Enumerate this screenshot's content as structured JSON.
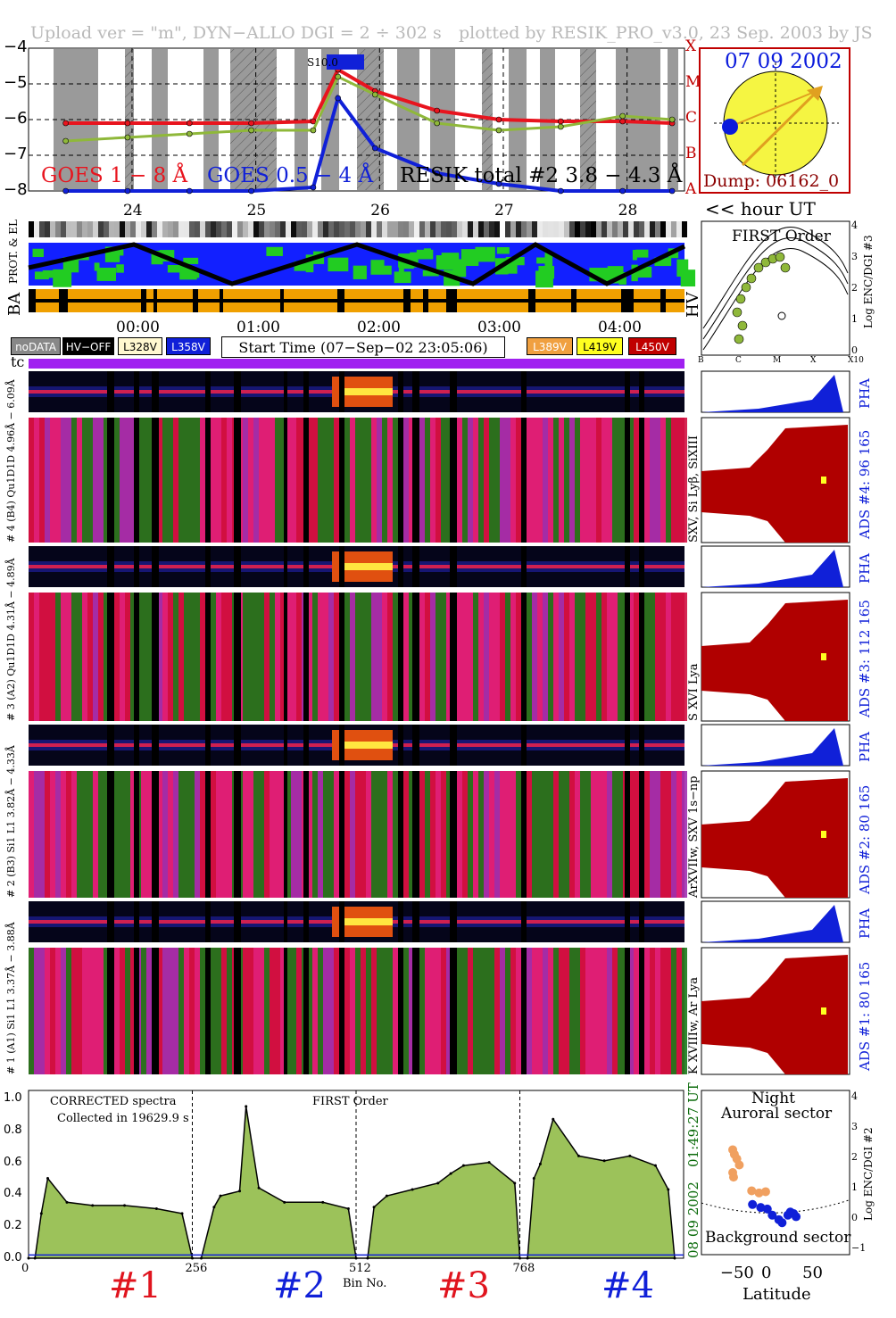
{
  "header": {
    "upload": "Upload ver = \"m\", DYN−ALLO DGI =   2 ÷ 302 s",
    "plotted": "plotted by RESIK_PRO_v3.0, 23 Sep. 2003 by JS"
  },
  "goes_panel": {
    "y_ticks": [
      "−4",
      "−5",
      "−6",
      "−7",
      "−8"
    ],
    "class_letters": [
      "X",
      "M",
      "C",
      "B",
      "A"
    ],
    "x_ticks": [
      "24",
      "25",
      "26",
      "27",
      "28"
    ],
    "flare_tag": "S10.0",
    "label_goes18": "GOES 1 − 8 Å",
    "label_goes054": "GOES 0.5 − 4 Å",
    "label_resik": "RESIK total #2  3.8 − 4.3 Å",
    "hour_label": "<< hour UT",
    "colors": {
      "goes18": "#e8141e",
      "goes054": "#1020d8",
      "resik": "#8fb83a"
    }
  },
  "sun_panel": {
    "date": "07 09 2002",
    "dump": "Dump: 06162_0",
    "colors": {
      "disk": "#f5f542",
      "track": "#e0a020",
      "point": "#0a1adc"
    }
  },
  "env_panel": {
    "label_prot": "PROT. & EL",
    "label_ba": "BA",
    "label_hv": "HV",
    "time_ticks": [
      "00:00",
      "01:00",
      "02:00",
      "03:00",
      "04:00"
    ]
  },
  "legend": {
    "nodata": "noDATA",
    "hvoff": "HV−OFF",
    "l328": "L328V",
    "l358": "L358V",
    "start_time": "Start Time (07−Sep−02 23:05:06)",
    "l389": "L389V",
    "l419": "L419V",
    "l450": "L450V",
    "tc": "tc"
  },
  "first_order_panel": {
    "title": "FIRST Order",
    "y_label": "Log ENC/DGI #3",
    "y_ticks": [
      "4",
      "3",
      "2",
      "1",
      "0"
    ],
    "x_ticks": [
      "B",
      "C",
      "M",
      "X",
      "X10"
    ]
  },
  "channels": [
    {
      "left_label": "# 4 (B4) Qu1D1D 4.96Å − 6.09Å",
      "line_label": "SXV, Si Lyβ, SiXIII",
      "ads": "ADS #4:",
      "ads_nums": "96 165",
      "pha": "PHA"
    },
    {
      "left_label": "# 3 (A2) Qu1D1D 4.31Å − 4.89Å",
      "line_label": "S XVI Lya",
      "ads": "ADS #3:",
      "ads_nums": "112 165",
      "pha": "PHA"
    },
    {
      "left_label": "# 2 (B3) Si1 L1 3.82Å − 4.33Å",
      "line_label": "ArXVIIw, SXV 1s−np",
      "ads": "ADS #2:",
      "ads_nums": "80 165",
      "pha": "PHA"
    },
    {
      "left_label": "# 1 (A1) Si1 L1 3.37Å − 3.88Å",
      "line_label": "K XVIIIw, Ar Lya",
      "ads": "ADS #1:",
      "ads_nums": "80 165",
      "pha": "PHA"
    }
  ],
  "spectrum_panel": {
    "corrected": "CORRECTED spectra",
    "collected": "Collected in 19629.9 s",
    "first_order": "FIRST Order",
    "y_ticks": [
      "1.0",
      "0.8",
      "0.6",
      "0.4",
      "0.2",
      "0.0"
    ],
    "x_ticks": [
      "0",
      "256",
      "512",
      "768"
    ],
    "x_label": "Bin No.",
    "date": "08 09 2002",
    "time": "01:49:27 UT",
    "groups": [
      "#1",
      "#2",
      "#3",
      "#4"
    ],
    "group_colors": [
      "#e0141e",
      "#1020d8",
      "#e0141e",
      "#1020d8"
    ]
  },
  "latitude_panel": {
    "night": "Night",
    "auroral": "Auroral sector",
    "background": "Background sector",
    "x_label": "Latitude",
    "x_ticks": [
      "−50",
      "0",
      "50"
    ],
    "y_label": "Log ENC/DGI #2",
    "y_ticks": [
      "4",
      "3",
      "2",
      "1",
      "0",
      "−1"
    ]
  },
  "chart_data": [
    {
      "type": "line",
      "title": "",
      "x": [
        23.5,
        24.0,
        24.5,
        25.0,
        25.5,
        25.7,
        26.0,
        26.5,
        27.0,
        27.5,
        28.0,
        28.4
      ],
      "xlim": [
        23.2,
        28.5
      ],
      "ylim": [
        -8,
        -4
      ],
      "ylabel_scale": "log10 flux",
      "series": [
        {
          "name": "GOES 1 − 8 Å",
          "values": [
            -6.1,
            -6.1,
            -6.1,
            -6.1,
            -6.05,
            -4.6,
            -5.2,
            -5.75,
            -6.0,
            -6.05,
            -6.05,
            -6.1
          ]
        },
        {
          "name": "GOES 0.5 − 4 Å",
          "values": [
            -8.0,
            -8.0,
            -8.0,
            -8.0,
            -7.9,
            -5.4,
            -6.8,
            -7.5,
            -7.8,
            -8.0,
            -8.0,
            -8.0
          ]
        },
        {
          "name": "RESIK total #2  3.8 − 4.3 Å",
          "values": [
            -6.6,
            -6.5,
            -6.4,
            -6.3,
            -6.3,
            -4.8,
            -5.3,
            -6.1,
            -6.3,
            -6.2,
            -5.9,
            -6.0
          ]
        }
      ]
    },
    {
      "type": "area",
      "title": "",
      "xlabel": "Bin No.",
      "xlim": [
        0,
        1024
      ],
      "ylim": [
        0,
        1.05
      ],
      "x": [
        0,
        10,
        20,
        30,
        60,
        100,
        150,
        200,
        240,
        256,
        270,
        290,
        300,
        330,
        340,
        360,
        400,
        460,
        500,
        512,
        530,
        540,
        560,
        600,
        640,
        660,
        680,
        720,
        760,
        768,
        780,
        790,
        800,
        820,
        860,
        900,
        940,
        980,
        1000,
        1010
      ],
      "series": [
        {
          "name": "",
          "values": [
            0.0,
            0.0,
            0.28,
            0.5,
            0.35,
            0.33,
            0.33,
            0.31,
            0.28,
            0.0,
            0.0,
            0.32,
            0.39,
            0.42,
            0.95,
            0.44,
            0.35,
            0.35,
            0.31,
            0.0,
            0.0,
            0.32,
            0.39,
            0.43,
            0.47,
            0.53,
            0.58,
            0.6,
            0.47,
            0.0,
            0.0,
            0.5,
            0.59,
            0.87,
            0.64,
            0.61,
            0.64,
            0.58,
            0.43,
            0.0
          ]
        }
      ]
    },
    {
      "type": "scatter",
      "title": "",
      "xlabel": "Latitude",
      "ylabel": "Log ENC/DGI #2",
      "xlim": [
        -90,
        90
      ],
      "ylim": [
        -1.2,
        4.2
      ],
      "series": [
        {
          "name": "Auroral sector",
          "x": [
            -52,
            -50,
            -47,
            -44,
            -52,
            -51,
            -29,
            -20,
            -12
          ],
          "y": [
            2.25,
            2.1,
            1.95,
            1.75,
            1.5,
            1.35,
            0.9,
            0.83,
            0.87
          ]
        },
        {
          "name": "Background sector",
          "x": [
            -28,
            -18,
            -10,
            -4,
            4,
            8,
            15,
            18,
            22,
            25
          ],
          "y": [
            0.45,
            0.35,
            0.3,
            0.1,
            -0.05,
            -0.15,
            0.1,
            0.2,
            0.15,
            0.05
          ]
        }
      ]
    }
  ]
}
